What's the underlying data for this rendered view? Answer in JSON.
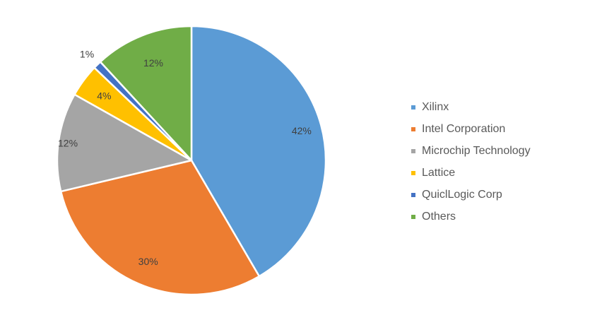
{
  "chart_data": {
    "type": "pie",
    "title": "",
    "series": [
      {
        "name": "Xilinx",
        "value": 42,
        "label": "42%",
        "color": "#5B9BD5"
      },
      {
        "name": "Intel Corporation",
        "value": 30,
        "label": "30%",
        "color": "#ED7D31"
      },
      {
        "name": "Microchip Technology",
        "value": 12,
        "label": "12%",
        "color": "#A5A5A5"
      },
      {
        "name": "Lattice",
        "value": 4,
        "label": "4%",
        "color": "#FFC000"
      },
      {
        "name": "QuiclLogic Corp",
        "value": 1,
        "label": "1%",
        "color": "#4472C4"
      },
      {
        "name": "Others",
        "value": 12,
        "label": "12%",
        "color": "#70AD47"
      }
    ],
    "start_angle": "12 o'clock",
    "direction": "clockwise",
    "legend_position": "right"
  }
}
